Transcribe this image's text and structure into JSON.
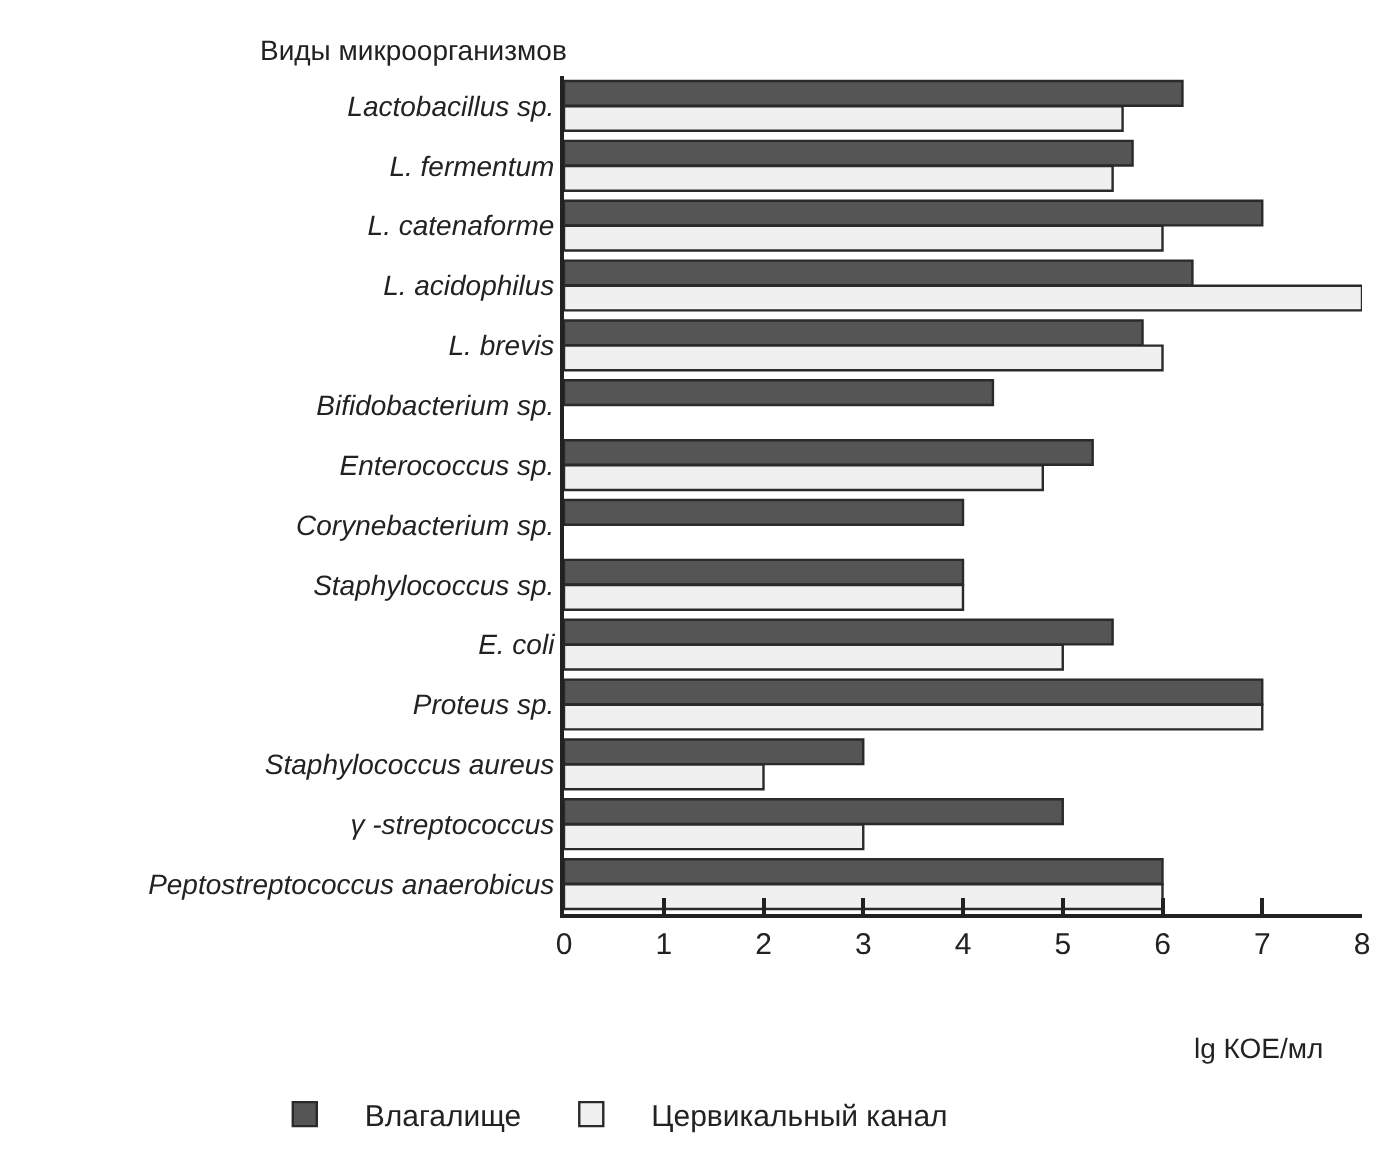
{
  "chart_data": {
    "type": "bar",
    "orientation": "horizontal",
    "title": "Виды микроорганизмов",
    "xlabel": "lg КОЕ/мл",
    "categories": [
      "Lactobacillus sp.",
      "L. fermentum",
      "L. catenaforme",
      "L. acidophilus",
      "L. brevis",
      "Bifidobacterium sp.",
      "Enterococcus sp.",
      "Corynebacterium sp.",
      "Staphylococcus sp.",
      "E. coli",
      "Proteus sp.",
      "Staphylococcus aureus",
      "γ -streptococcus",
      "Peptostreptococcus anaerobicus"
    ],
    "series": [
      {
        "name": "Влагалище",
        "color": "#555555",
        "values": [
          6.2,
          5.7,
          7.0,
          6.3,
          5.8,
          4.3,
          5.3,
          4.0,
          4.0,
          5.5,
          7.0,
          3.0,
          5.0,
          6.0
        ]
      },
      {
        "name": "Цервикальный канал",
        "color": "#f0f0f0",
        "values": [
          5.6,
          5.5,
          6.0,
          8.0,
          6.0,
          null,
          4.8,
          null,
          4.0,
          5.0,
          7.0,
          2.0,
          3.0,
          6.0
        ]
      }
    ],
    "xlim": [
      0,
      8
    ],
    "xticks": [
      0,
      1,
      2,
      3,
      4,
      5,
      6,
      7,
      8
    ],
    "grid": false,
    "legend": "bottom left"
  }
}
